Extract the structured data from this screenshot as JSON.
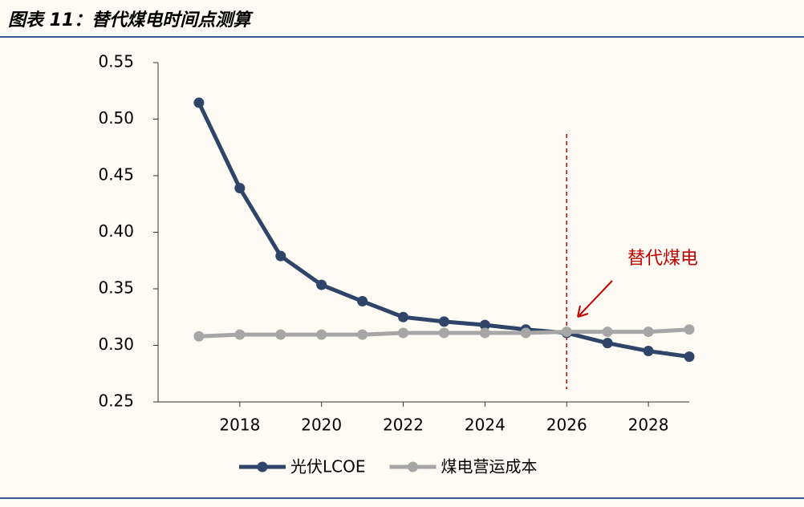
{
  "chart_data": {
    "type": "line",
    "title": "图表 11：替代煤电时间点测算",
    "x": [
      2017,
      2018,
      2019,
      2020,
      2021,
      2022,
      2023,
      2024,
      2025,
      2026,
      2027,
      2028,
      2029
    ],
    "series": [
      {
        "name": "光伏LCOE",
        "color": "#2e4468",
        "values": [
          0.5145,
          0.439,
          0.379,
          0.3535,
          0.339,
          0.325,
          0.321,
          0.318,
          0.314,
          0.311,
          0.302,
          0.295,
          0.29
        ]
      },
      {
        "name": "煤电营运成本",
        "color": "#a6a6a6",
        "values": [
          0.308,
          0.3095,
          0.3095,
          0.3095,
          0.3095,
          0.311,
          0.311,
          0.311,
          0.311,
          0.312,
          0.312,
          0.312,
          0.314
        ]
      }
    ],
    "xlim": [
      2016,
      2029
    ],
    "xticks": [
      2018,
      2020,
      2022,
      2024,
      2026,
      2028
    ],
    "ylim": [
      0.25,
      0.55
    ],
    "yticks": [
      {
        "value": 0.25,
        "label": "0.25"
      },
      {
        "value": 0.3,
        "label": "0.30"
      },
      0.35,
      {
        "value": 0.4,
        "label": "0.40"
      },
      0.45,
      {
        "value": 0.5,
        "label": "0.50"
      },
      0.55
    ],
    "annotation": "替代煤电",
    "annotation_x": 2026,
    "annotation_color": "#c00000",
    "legend": "bottom"
  }
}
